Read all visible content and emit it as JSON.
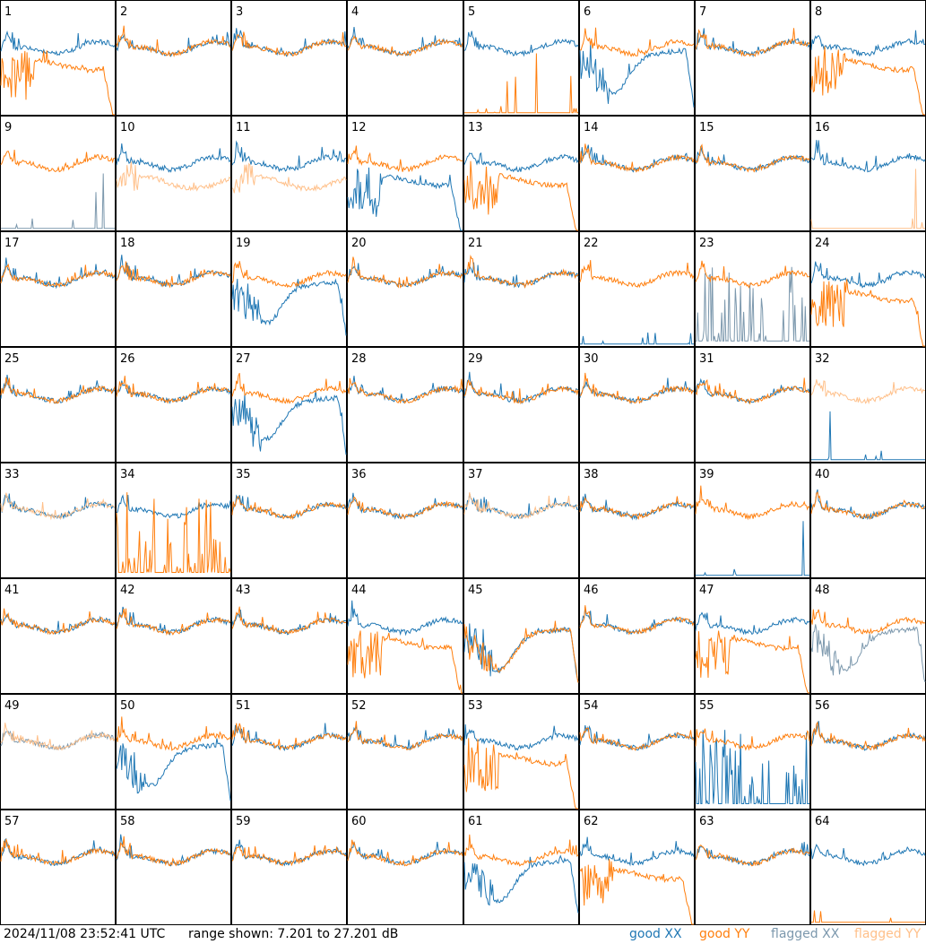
{
  "chart_data": {
    "type": "line",
    "title": "",
    "tiles": [
      "1",
      "2",
      "3",
      "4",
      "5",
      "6",
      "7",
      "8",
      "9",
      "10",
      "11",
      "12",
      "13",
      "14",
      "15",
      "16",
      "17",
      "18",
      "19",
      "20",
      "21",
      "22",
      "23",
      "24",
      "25",
      "26",
      "27",
      "28",
      "29",
      "30",
      "31",
      "32",
      "33",
      "34",
      "35",
      "36",
      "37",
      "38",
      "39",
      "40",
      "41",
      "42",
      "43",
      "44",
      "45",
      "46",
      "47",
      "48",
      "49",
      "50",
      "51",
      "52",
      "53",
      "54",
      "55",
      "56",
      "57",
      "58",
      "59",
      "60",
      "61",
      "62",
      "63",
      "64"
    ],
    "ylim": [
      7.201,
      27.201
    ],
    "yunit": "dB",
    "grid": false,
    "series": [
      {
        "name": "good XX",
        "color": "#1f77b4"
      },
      {
        "name": "good YY",
        "color": "#ff7f0e"
      },
      {
        "name": "flagged XX",
        "color": "#7c98ad"
      },
      {
        "name": "flagged YY",
        "color": "#ffc08a"
      }
    ],
    "profiles": {
      "nominal": "upper band, mild ripple",
      "sag": "deep U dip mid band",
      "lowdrop": "spike comb then low plateau, falloff",
      "flat": "near floor with sparse spikes",
      "comb": "tall spike comb near floor",
      "mid": "mid-level flattened band"
    }
  },
  "footer": {
    "timestamp": "2024/11/08 23:52:41 UTC",
    "range": "range shown: 7.201 to 27.201 dB",
    "legend": [
      "good XX",
      "good YY",
      "flagged XX",
      "flagged YY"
    ]
  }
}
